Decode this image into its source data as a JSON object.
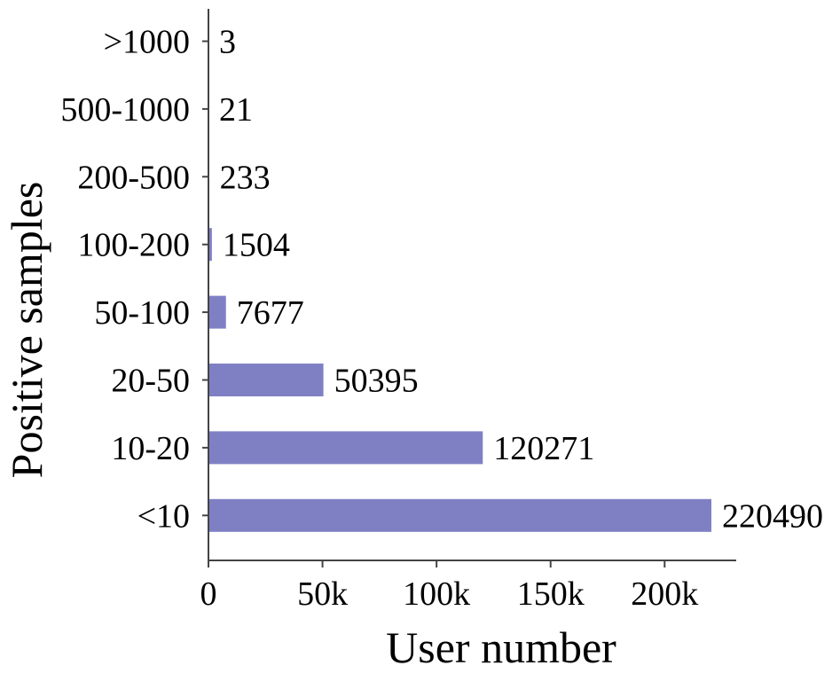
{
  "chart_data": {
    "type": "bar",
    "orientation": "horizontal",
    "categories": [
      "<10",
      "10-20",
      "20-50",
      "50-100",
      "100-200",
      "200-500",
      "500-1000",
      ">1000"
    ],
    "values": [
      220490,
      120271,
      50395,
      7677,
      1504,
      233,
      21,
      3
    ],
    "data_labels": [
      "220490",
      "120271",
      "50395",
      "7677",
      "1504",
      "233",
      "21",
      "3"
    ],
    "xlabel": "User number",
    "ylabel": "Positive samples",
    "xlim": [
      0,
      230000
    ],
    "xticks": [
      0,
      50000,
      100000,
      150000,
      200000
    ],
    "xtick_labels": [
      "0",
      "50k",
      "100k",
      "150k",
      "200k"
    ],
    "bar_color": "#7f80c4",
    "grid": false,
    "legend": "none"
  }
}
